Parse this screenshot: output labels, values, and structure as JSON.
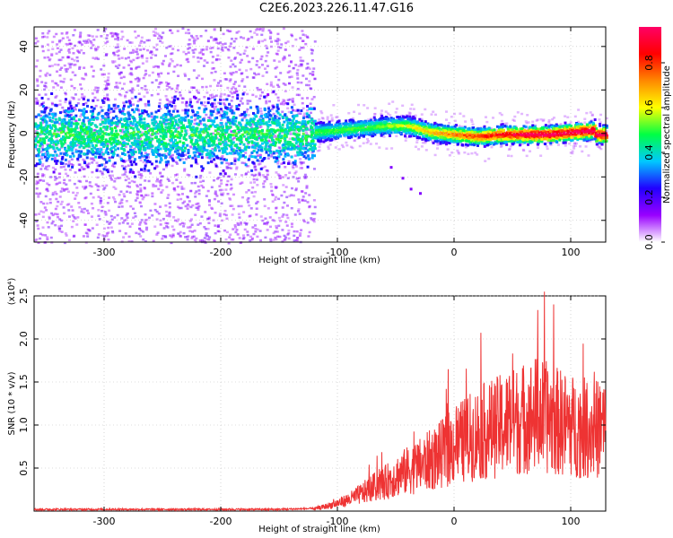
{
  "title": "C2E6.2023.226.11.47.G16",
  "chart_data": [
    {
      "type": "heatmap",
      "xlabel": "Height of straight line (km)",
      "ylabel": "Frequency (Hz)",
      "xlim": [
        -360,
        130
      ],
      "ylim": [
        -50,
        49
      ],
      "xticks": [
        -300,
        -200,
        -100,
        0,
        100
      ],
      "yticks": [
        -40,
        -20,
        0,
        20,
        40
      ],
      "grid": true,
      "colorbar": {
        "label": "Normalized spectral amplitude",
        "range": [
          0,
          0.96
        ],
        "ticks": [
          0.0,
          0.2,
          0.4,
          0.6,
          0.8
        ],
        "colormap": [
          "#ffffff",
          "#9900ff",
          "#2200ff",
          "#00c8ff",
          "#00ff44",
          "#ffff00",
          "#ff8800",
          "#ff0000",
          "#ff0066"
        ]
      },
      "features": {
        "noisy_region_x": [
          -360,
          -120
        ],
        "peak_track": [
          [
            -120,
            1
          ],
          [
            -100,
            2
          ],
          [
            -80,
            3
          ],
          [
            -60,
            4
          ],
          [
            -40,
            4
          ],
          [
            -20,
            1
          ],
          [
            0,
            0
          ],
          [
            20,
            -1
          ],
          [
            40,
            0
          ],
          [
            60,
            0
          ],
          [
            80,
            0
          ],
          [
            100,
            1
          ],
          [
            120,
            2
          ]
        ],
        "tail_points": [
          [
            -55,
            -15
          ],
          [
            -45,
            -20
          ],
          [
            -38,
            -25
          ],
          [
            -30,
            -27
          ]
        ]
      }
    },
    {
      "type": "line",
      "xlabel": "Height of straight line (km)",
      "ylabel": "SNR (10 * v/v)",
      "scale_label": "(x10⁴)",
      "xlim": [
        -360,
        130
      ],
      "ylim": [
        0,
        2.5
      ],
      "xticks": [
        -300,
        -200,
        -100,
        0,
        100
      ],
      "yticks": [
        0.5,
        1.0,
        1.5,
        2.0,
        2.5
      ],
      "ytick_labels": [
        "0.5",
        "1.0",
        "1.5",
        "2.0",
        "2.5"
      ],
      "grid": true,
      "series": [
        {
          "name": "SNR",
          "color": "#ee3333",
          "x": [
            -360,
            -300,
            -250,
            -200,
            -150,
            -120,
            -110,
            -100,
            -90,
            -80,
            -70,
            -60,
            -50,
            -40,
            -30,
            -20,
            -10,
            0,
            10,
            20,
            30,
            40,
            50,
            60,
            70,
            80,
            90,
            100,
            110,
            120,
            130
          ],
          "values": [
            0.02,
            0.02,
            0.02,
            0.02,
            0.02,
            0.03,
            0.06,
            0.1,
            0.15,
            0.22,
            0.3,
            0.36,
            0.45,
            0.52,
            0.58,
            0.66,
            0.74,
            0.85,
            0.92,
            1.0,
            1.05,
            1.1,
            1.15,
            1.2,
            1.25,
            1.2,
            1.15,
            1.1,
            1.08,
            1.05,
            1.1
          ]
        }
      ]
    }
  ]
}
